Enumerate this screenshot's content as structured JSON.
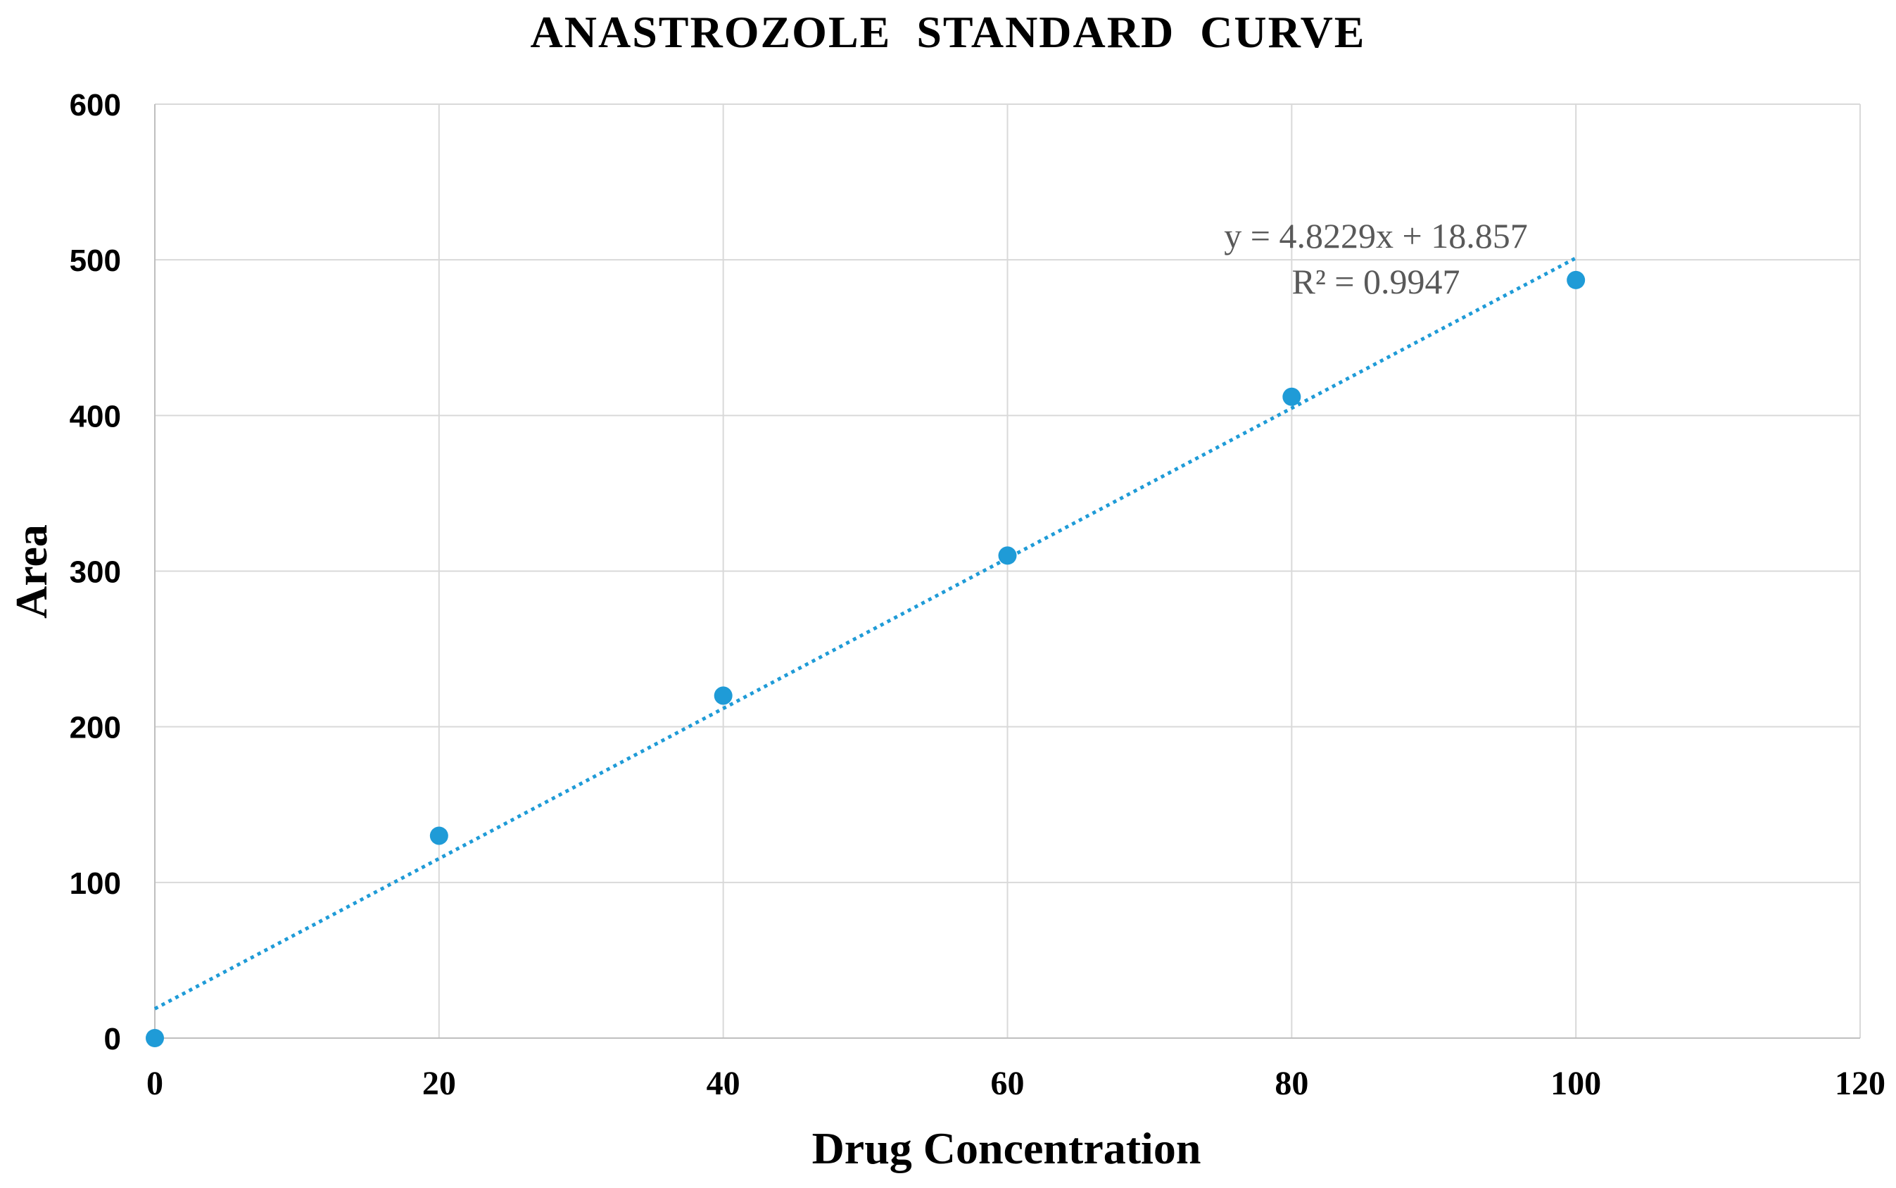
{
  "chart_data": {
    "type": "scatter",
    "title": "ANASTROZOLE  STANDARD  CURVE",
    "xlabel": "Drug Concentration",
    "ylabel": "Area",
    "xlim": [
      0,
      120
    ],
    "ylim": [
      0,
      600
    ],
    "x_ticks": [
      0,
      20,
      40,
      60,
      80,
      100,
      120
    ],
    "y_ticks": [
      0,
      100,
      200,
      300,
      400,
      500,
      600
    ],
    "grid": true,
    "series": [
      {
        "name": "Area",
        "x": [
          0,
          20,
          40,
          60,
          80,
          100
        ],
        "y": [
          0,
          130,
          220,
          310,
          412,
          487
        ],
        "color": "#1f9bd7"
      }
    ],
    "trendline": {
      "type": "linear",
      "slope": 4.8229,
      "intercept": 18.857,
      "x_range": [
        0,
        100
      ],
      "style": "dotted",
      "color": "#1f9bd7",
      "equation_label": "y = 4.8229x + 18.857",
      "r2_label": "R² = 0.9947"
    }
  }
}
